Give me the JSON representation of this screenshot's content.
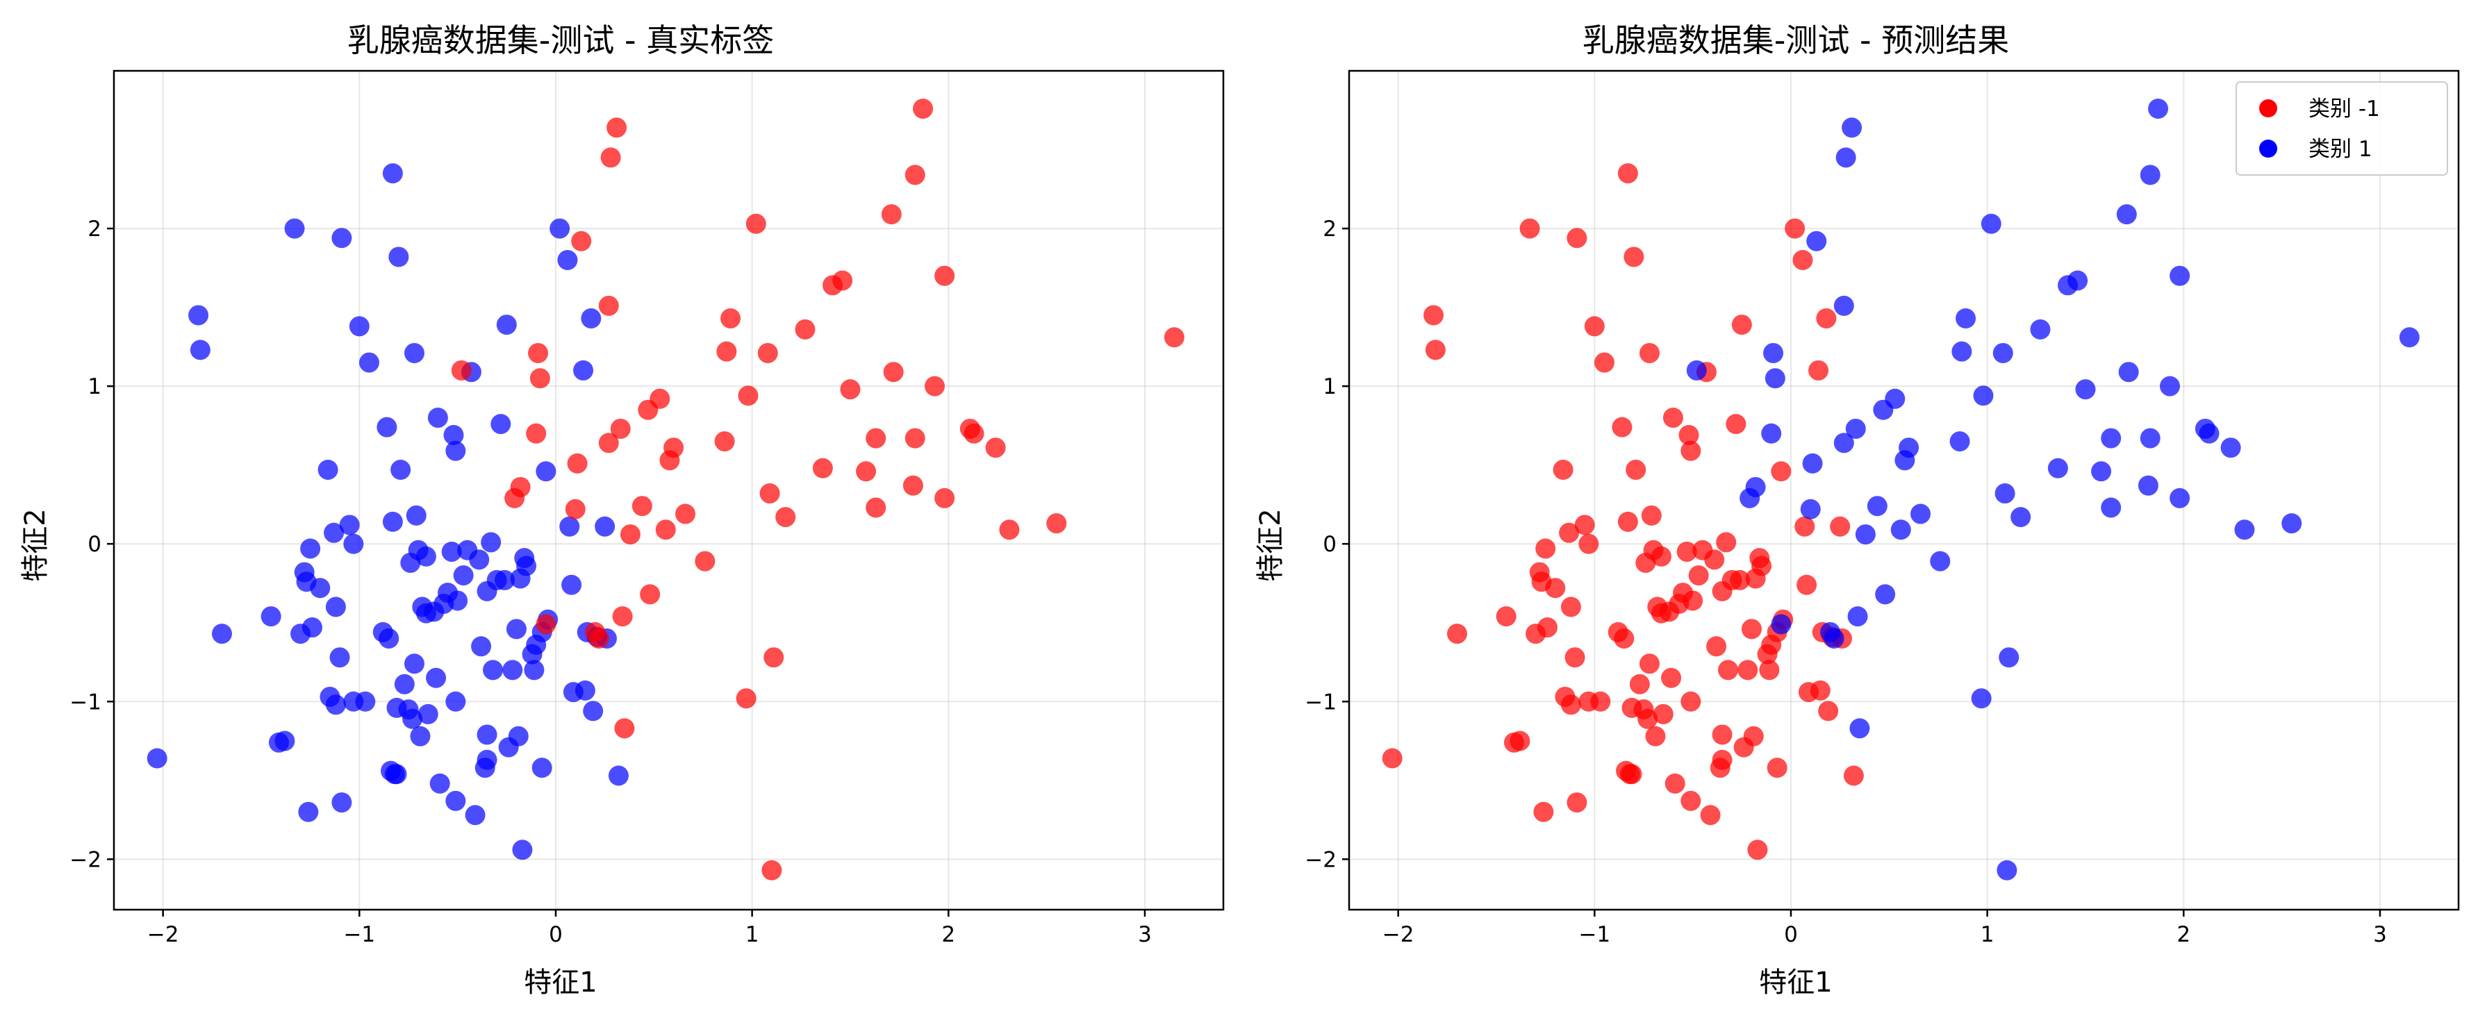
{
  "chart_data": [
    {
      "type": "scatter",
      "title": "乳腺癌数据集-测试 - 真实标签",
      "xlabel": "特征1",
      "ylabel": "特征2",
      "xlim": [
        -2.25,
        3.4
      ],
      "ylim": [
        -2.32,
        3.0
      ],
      "xticks": [
        -2,
        -1,
        0,
        1,
        2,
        3
      ],
      "yticks": [
        -2,
        -1,
        0,
        1,
        2
      ],
      "grid": true,
      "legend": null
    },
    {
      "type": "scatter",
      "title": "乳腺癌数据集-测试 - 预测结果",
      "xlabel": "特征1",
      "ylabel": "特征2",
      "xlim": [
        -2.25,
        3.4
      ],
      "ylim": [
        -2.32,
        3.0
      ],
      "xticks": [
        -2,
        -1,
        0,
        1,
        2,
        3
      ],
      "yticks": [
        -2,
        -1,
        0,
        1,
        2
      ],
      "grid": true,
      "legend": {
        "placement": "top-right",
        "entries": [
          {
            "label": "类别 -1",
            "color": "#ff0000"
          },
          {
            "label": "类别 1",
            "color": "#0000ff"
          }
        ]
      }
    }
  ],
  "colors": {
    "class_neg": "#ff0000",
    "class_pos": "#0000ff"
  },
  "points": [
    [
      -2.03,
      -1.36,
      1,
      -1
    ],
    [
      -1.82,
      1.45,
      1,
      -1
    ],
    [
      -1.81,
      1.23,
      1,
      -1
    ],
    [
      -1.7,
      -0.57,
      1,
      -1
    ],
    [
      -1.45,
      -0.46,
      1,
      -1
    ],
    [
      -1.41,
      -1.26,
      1,
      -1
    ],
    [
      -1.38,
      -1.25,
      1,
      -1
    ],
    [
      -1.33,
      2.0,
      1,
      -1
    ],
    [
      -1.3,
      -0.57,
      1,
      -1
    ],
    [
      -1.28,
      -0.18,
      1,
      -1
    ],
    [
      -1.27,
      -0.24,
      1,
      -1
    ],
    [
      -1.26,
      -1.7,
      1,
      -1
    ],
    [
      -1.25,
      -0.03,
      1,
      -1
    ],
    [
      -1.24,
      -0.53,
      1,
      -1
    ],
    [
      -1.2,
      -0.28,
      1,
      -1
    ],
    [
      -1.16,
      0.47,
      1,
      -1
    ],
    [
      -1.15,
      -0.97,
      1,
      -1
    ],
    [
      -1.13,
      0.07,
      1,
      -1
    ],
    [
      -1.12,
      -1.02,
      1,
      -1
    ],
    [
      -1.12,
      -0.4,
      1,
      -1
    ],
    [
      -1.1,
      -0.72,
      1,
      -1
    ],
    [
      -1.09,
      1.94,
      1,
      -1
    ],
    [
      -1.09,
      -1.64,
      1,
      -1
    ],
    [
      -1.05,
      0.12,
      1,
      -1
    ],
    [
      -1.03,
      0.0,
      1,
      -1
    ],
    [
      -1.03,
      -1.0,
      1,
      -1
    ],
    [
      -1.0,
      1.38,
      1,
      -1
    ],
    [
      -0.97,
      -1.0,
      1,
      -1
    ],
    [
      -0.95,
      1.15,
      1,
      -1
    ],
    [
      -0.88,
      -0.56,
      1,
      -1
    ],
    [
      -0.86,
      0.74,
      1,
      -1
    ],
    [
      -0.85,
      -0.6,
      1,
      -1
    ],
    [
      -0.84,
      -1.44,
      1,
      -1
    ],
    [
      -0.83,
      0.14,
      1,
      -1
    ],
    [
      -0.83,
      2.35,
      1,
      -1
    ],
    [
      -0.82,
      -1.46,
      1,
      -1
    ],
    [
      -0.81,
      -1.46,
      1,
      -1
    ],
    [
      -0.81,
      -1.04,
      1,
      -1
    ],
    [
      -0.8,
      1.82,
      1,
      -1
    ],
    [
      -0.79,
      0.47,
      1,
      -1
    ],
    [
      -0.77,
      -0.89,
      1,
      -1
    ],
    [
      -0.75,
      -1.05,
      1,
      -1
    ],
    [
      -0.74,
      -0.12,
      1,
      -1
    ],
    [
      -0.73,
      -1.11,
      1,
      -1
    ],
    [
      -0.72,
      1.21,
      1,
      -1
    ],
    [
      -0.72,
      -0.76,
      1,
      -1
    ],
    [
      -0.71,
      0.18,
      1,
      -1
    ],
    [
      -0.7,
      -0.04,
      1,
      -1
    ],
    [
      -0.69,
      -1.22,
      1,
      -1
    ],
    [
      -0.68,
      -0.4,
      1,
      -1
    ],
    [
      -0.66,
      -0.44,
      1,
      -1
    ],
    [
      -0.66,
      -0.08,
      1,
      -1
    ],
    [
      -0.65,
      -1.08,
      1,
      -1
    ],
    [
      -0.62,
      -0.43,
      1,
      -1
    ],
    [
      -0.61,
      -0.85,
      1,
      -1
    ],
    [
      -0.6,
      0.8,
      1,
      -1
    ],
    [
      -0.59,
      -1.52,
      1,
      -1
    ],
    [
      -0.57,
      -0.38,
      1,
      -1
    ],
    [
      -0.55,
      -0.31,
      1,
      -1
    ],
    [
      -0.53,
      -0.05,
      1,
      -1
    ],
    [
      -0.52,
      0.69,
      1,
      -1
    ],
    [
      -0.51,
      0.59,
      1,
      -1
    ],
    [
      -0.51,
      -1.0,
      1,
      -1
    ],
    [
      -0.51,
      -1.63,
      1,
      -1
    ],
    [
      -0.5,
      -0.36,
      1,
      -1
    ],
    [
      -0.47,
      -0.2,
      1,
      -1
    ],
    [
      -0.45,
      -0.04,
      1,
      -1
    ],
    [
      -0.43,
      1.09,
      1,
      -1
    ],
    [
      -0.41,
      -1.72,
      1,
      -1
    ],
    [
      -0.39,
      -0.1,
      1,
      -1
    ],
    [
      -0.38,
      -0.65,
      1,
      -1
    ],
    [
      -0.36,
      -1.42,
      1,
      -1
    ],
    [
      -0.35,
      -1.37,
      1,
      -1
    ],
    [
      -0.35,
      -0.3,
      1,
      -1
    ],
    [
      -0.35,
      -1.21,
      1,
      -1
    ],
    [
      -0.33,
      0.01,
      1,
      -1
    ],
    [
      -0.32,
      -0.8,
      1,
      -1
    ],
    [
      -0.3,
      -0.23,
      1,
      -1
    ],
    [
      -0.28,
      0.76,
      1,
      -1
    ],
    [
      -0.26,
      -0.23,
      1,
      -1
    ],
    [
      -0.25,
      1.39,
      1,
      -1
    ],
    [
      -0.24,
      -1.29,
      1,
      -1
    ],
    [
      -0.22,
      -0.8,
      1,
      -1
    ],
    [
      -0.2,
      -0.54,
      1,
      -1
    ],
    [
      -0.19,
      -1.22,
      1,
      -1
    ],
    [
      -0.18,
      -0.22,
      1,
      -1
    ],
    [
      -0.17,
      -1.94,
      1,
      -1
    ],
    [
      -0.16,
      -0.09,
      1,
      -1
    ],
    [
      -0.15,
      -0.14,
      1,
      -1
    ],
    [
      -0.12,
      -0.7,
      1,
      -1
    ],
    [
      -0.11,
      -0.8,
      1,
      -1
    ],
    [
      -0.1,
      -0.64,
      1,
      -1
    ],
    [
      -0.07,
      -1.42,
      1,
      -1
    ],
    [
      -0.07,
      -0.56,
      1,
      -1
    ],
    [
      -0.05,
      0.46,
      1,
      -1
    ],
    [
      -0.04,
      -0.48,
      1,
      -1
    ],
    [
      0.02,
      2.0,
      1,
      -1
    ],
    [
      0.06,
      1.8,
      1,
      -1
    ],
    [
      0.07,
      0.11,
      1,
      -1
    ],
    [
      0.08,
      -0.26,
      1,
      -1
    ],
    [
      0.09,
      -0.94,
      1,
      -1
    ],
    [
      0.14,
      1.1,
      1,
      -1
    ],
    [
      0.15,
      -0.93,
      1,
      -1
    ],
    [
      0.16,
      -0.56,
      1,
      -1
    ],
    [
      0.18,
      1.43,
      1,
      -1
    ],
    [
      0.19,
      -1.06,
      1,
      -1
    ],
    [
      0.21,
      -0.59,
      1,
      -1
    ],
    [
      0.26,
      -0.6,
      1,
      -1
    ],
    [
      0.25,
      0.11,
      1,
      -1
    ],
    [
      0.32,
      -1.47,
      1,
      -1
    ],
    [
      -0.48,
      1.1,
      -1,
      1
    ],
    [
      -0.21,
      0.29,
      -1,
      1
    ],
    [
      -0.18,
      0.36,
      -1,
      1
    ],
    [
      -0.1,
      0.7,
      -1,
      1
    ],
    [
      -0.09,
      1.21,
      -1,
      1
    ],
    [
      -0.08,
      1.05,
      -1,
      1
    ],
    [
      -0.05,
      -0.51,
      -1,
      1
    ],
    [
      0.1,
      0.22,
      -1,
      1
    ],
    [
      0.11,
      0.51,
      -1,
      1
    ],
    [
      0.13,
      1.92,
      -1,
      1
    ],
    [
      0.2,
      -0.56,
      -1,
      1
    ],
    [
      0.22,
      -0.6,
      -1,
      1
    ],
    [
      0.27,
      0.64,
      -1,
      1
    ],
    [
      0.27,
      1.51,
      -1,
      1
    ],
    [
      0.28,
      2.45,
      -1,
      1
    ],
    [
      0.31,
      2.64,
      -1,
      1
    ],
    [
      0.33,
      0.73,
      -1,
      1
    ],
    [
      0.34,
      -0.46,
      -1,
      1
    ],
    [
      0.35,
      -1.17,
      -1,
      1
    ],
    [
      0.38,
      0.06,
      -1,
      1
    ],
    [
      0.44,
      0.24,
      -1,
      1
    ],
    [
      0.47,
      0.85,
      -1,
      1
    ],
    [
      0.48,
      -0.32,
      -1,
      1
    ],
    [
      0.53,
      0.92,
      -1,
      1
    ],
    [
      0.56,
      0.09,
      -1,
      1
    ],
    [
      0.58,
      0.53,
      -1,
      1
    ],
    [
      0.6,
      0.61,
      -1,
      1
    ],
    [
      0.66,
      0.19,
      -1,
      1
    ],
    [
      0.76,
      -0.11,
      -1,
      1
    ],
    [
      0.86,
      0.65,
      -1,
      1
    ],
    [
      0.87,
      1.22,
      -1,
      1
    ],
    [
      0.89,
      1.43,
      -1,
      1
    ],
    [
      0.97,
      -0.98,
      -1,
      1
    ],
    [
      0.98,
      0.94,
      -1,
      1
    ],
    [
      1.02,
      2.03,
      -1,
      1
    ],
    [
      1.08,
      1.21,
      -1,
      1
    ],
    [
      1.09,
      0.32,
      -1,
      1
    ],
    [
      1.1,
      -2.07,
      -1,
      1
    ],
    [
      1.11,
      -0.72,
      -1,
      1
    ],
    [
      1.17,
      0.17,
      -1,
      1
    ],
    [
      1.27,
      1.36,
      -1,
      1
    ],
    [
      1.36,
      0.48,
      -1,
      1
    ],
    [
      1.41,
      1.64,
      -1,
      1
    ],
    [
      1.46,
      1.67,
      -1,
      1
    ],
    [
      1.5,
      0.98,
      -1,
      1
    ],
    [
      1.58,
      0.46,
      -1,
      1
    ],
    [
      1.63,
      0.23,
      -1,
      1
    ],
    [
      1.63,
      0.67,
      -1,
      1
    ],
    [
      1.71,
      2.09,
      -1,
      1
    ],
    [
      1.72,
      1.09,
      -1,
      1
    ],
    [
      1.82,
      0.37,
      -1,
      1
    ],
    [
      1.83,
      2.34,
      -1,
      1
    ],
    [
      1.83,
      0.67,
      -1,
      1
    ],
    [
      1.87,
      2.76,
      -1,
      1
    ],
    [
      1.93,
      1.0,
      -1,
      1
    ],
    [
      1.98,
      1.7,
      -1,
      1
    ],
    [
      1.98,
      0.29,
      -1,
      1
    ],
    [
      2.11,
      0.73,
      -1,
      1
    ],
    [
      2.13,
      0.7,
      -1,
      1
    ],
    [
      2.24,
      0.61,
      -1,
      1
    ],
    [
      2.31,
      0.09,
      -1,
      1
    ],
    [
      2.55,
      0.13,
      -1,
      1
    ],
    [
      3.15,
      1.31,
      -1,
      1
    ]
  ]
}
